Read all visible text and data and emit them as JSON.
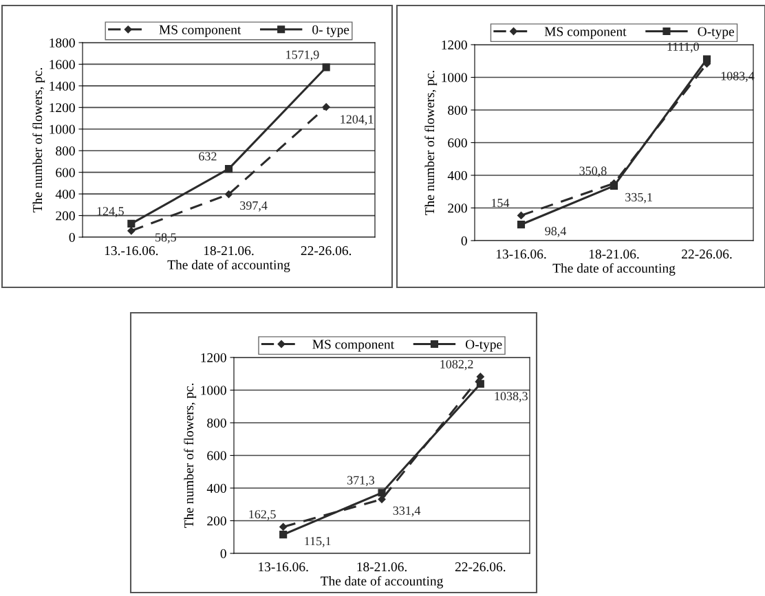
{
  "chart_data": [
    {
      "type": "line",
      "categories": [
        "13.-16.06.",
        "18-21.06.",
        "22-26.06."
      ],
      "xlabel": "The date of accounting",
      "ylabel": "The number of flowers, pc.",
      "ylim": [
        0,
        1800
      ],
      "yticks": [
        0,
        200,
        400,
        600,
        800,
        1000,
        1200,
        1400,
        1600,
        1800
      ],
      "grid": "y",
      "legend": "top",
      "series": [
        {
          "name": "MS component",
          "color": "#2b2b2b",
          "values": [
            58.5,
            397.4,
            1204.1
          ],
          "value_labels": [
            "58,5",
            "397,4",
            "1204,1"
          ],
          "marker": "diamond",
          "line_style": "dashed"
        },
        {
          "name": "0- type",
          "color": "#2b2b2b",
          "values": [
            124.5,
            632,
            1571.9
          ],
          "value_labels": [
            "124,5",
            "632",
            "1571,9"
          ],
          "marker": "square",
          "line_style": "solid"
        }
      ]
    },
    {
      "type": "line",
      "categories": [
        "13-16.06.",
        "18-21.06.",
        "22-26.06."
      ],
      "xlabel": "The date of accounting",
      "ylabel": "The number of flowers, pc.",
      "ylim": [
        0,
        1200
      ],
      "yticks": [
        0,
        200,
        400,
        600,
        800,
        1000,
        1200
      ],
      "grid": "y",
      "legend": "top",
      "series": [
        {
          "name": "MS component",
          "color": "#2b2b2b",
          "values": [
            154,
            350.8,
            1083.4
          ],
          "value_labels": [
            "154",
            "350,8",
            "1083,4"
          ],
          "marker": "diamond",
          "line_style": "dashed"
        },
        {
          "name": "O-type",
          "color": "#2b2b2b",
          "values": [
            98.4,
            335.1,
            1111.0
          ],
          "value_labels": [
            "98,4",
            "335,1",
            "1111,0"
          ],
          "marker": "square",
          "line_style": "solid"
        }
      ]
    },
    {
      "type": "line",
      "categories": [
        "13-16.06.",
        "18-21.06.",
        "22-26.06."
      ],
      "xlabel": "The date of accounting",
      "ylabel": "The number of flowers, pc.",
      "ylim": [
        0,
        1200
      ],
      "yticks": [
        0,
        200,
        400,
        600,
        800,
        1000,
        1200
      ],
      "grid": "y",
      "legend": "top",
      "series": [
        {
          "name": "MS component",
          "color": "#2b2b2b",
          "values": [
            162.5,
            331.4,
            1082.2
          ],
          "value_labels": [
            "162,5",
            "331,4",
            "1082,2"
          ],
          "marker": "diamond",
          "line_style": "dashed"
        },
        {
          "name": "O-type",
          "color": "#2b2b2b",
          "values": [
            115.1,
            371.3,
            1038.3
          ],
          "value_labels": [
            "115,1",
            "371,3",
            "1038,3"
          ],
          "marker": "square",
          "line_style": "solid"
        }
      ]
    }
  ]
}
